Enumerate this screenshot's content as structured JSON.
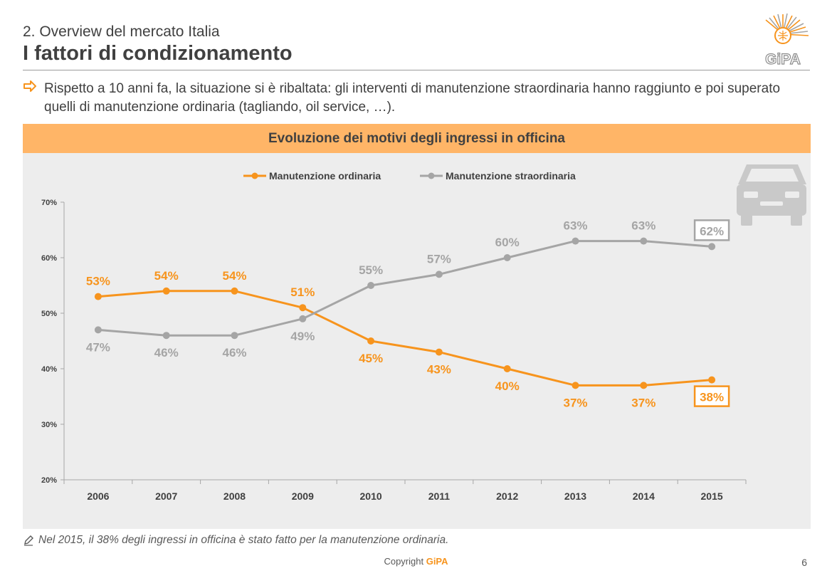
{
  "header": {
    "subtitle": "2. Overview del mercato Italia",
    "title": "I fattori di condizionamento",
    "logo_text": "GiPA"
  },
  "bullet": {
    "text": "Rispetto a 10 anni fa, la situazione si è ribaltata: gli interventi di manutenzione straordinaria hanno raggiunto e poi superato quelli di manutenzione ordinaria (tagliando, oil service, …)."
  },
  "note": {
    "text": "Nel 2015, il 38% degli ingressi in officina è stato fatto per la manutenzione ordinaria."
  },
  "footer": {
    "copyright_prefix": "Copyright ",
    "copyright_brand": "GiPA",
    "page_number": "6"
  },
  "colors": {
    "ordinaria": "#f7941d",
    "straordinaria": "#a5a5a5",
    "header_band": "#ffb567",
    "panel": "#ededed"
  },
  "chart_data": {
    "type": "line",
    "title": "Evoluzione dei motivi degli ingressi in officina",
    "x": [
      "2006",
      "2007",
      "2008",
      "2009",
      "2010",
      "2011",
      "2012",
      "2013",
      "2014",
      "2015"
    ],
    "series": [
      {
        "name": "Manutenzione ordinaria",
        "values": [
          53,
          54,
          54,
          51,
          45,
          43,
          40,
          37,
          37,
          38
        ],
        "labels": [
          "53%",
          "54%",
          "54%",
          "51%",
          "45%",
          "43%",
          "40%",
          "37%",
          "37%",
          "38%"
        ],
        "color": "#f7941d",
        "highlight_last": true
      },
      {
        "name": "Manutenzione straordinaria",
        "values": [
          47,
          46,
          46,
          49,
          55,
          57,
          60,
          63,
          63,
          62
        ],
        "labels": [
          "47%",
          "46%",
          "46%",
          "49%",
          "55%",
          "57%",
          "60%",
          "63%",
          "63%",
          "62%"
        ],
        "color": "#a5a5a5",
        "highlight_last": true
      }
    ],
    "yticks": [
      20,
      30,
      40,
      50,
      60,
      70
    ],
    "ytick_labels": [
      "20%",
      "30%",
      "40%",
      "50%",
      "60%",
      "70%"
    ],
    "ylim": [
      20,
      70
    ],
    "xlabel": "",
    "ylabel": "",
    "grid": false,
    "legend_position": "top-center"
  }
}
